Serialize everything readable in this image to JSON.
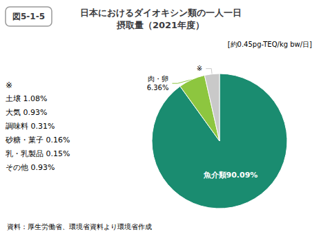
{
  "chart_data": {
    "type": "pie",
    "figure_label": "図5-1-5",
    "title": "日本におけるダイオキシン類の一人一日\n摂取量（2021年度）",
    "subtitle": "[約0.45pg-TEQ/kg bw/日]",
    "categories": [
      "魚介類90.09%",
      "肉・卵\n6.36%",
      "※"
    ],
    "values": [
      90.09,
      6.36,
      3.55
    ],
    "colors": [
      "#1a8c70",
      "#8dc63f",
      "#c9c9c9"
    ],
    "annotations": [
      "※",
      "土壌 1.08%",
      "大気 0.93%",
      "調味料 0.31%",
      "砂糖・菓子 0.16%",
      "乳・乳製品 0.15%",
      "その他 0.93%"
    ],
    "source": "資料：厚生労働省、環境省資料より環境省作成"
  }
}
